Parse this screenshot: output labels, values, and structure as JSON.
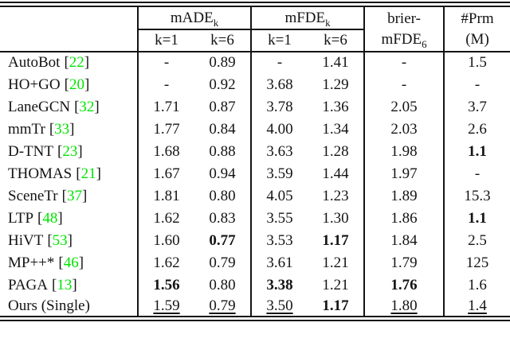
{
  "colors": {
    "citation_green": "#00e500",
    "text_black": "#141414"
  },
  "table": {
    "cite_open": "[",
    "cite_close": "]",
    "header": {
      "made": {
        "base": "mADE",
        "sub": "k"
      },
      "mfde": {
        "base": "mFDE",
        "sub": "k"
      },
      "k1": "k=1",
      "k6": "k=6",
      "brier_top": "brier-",
      "brier_bot": {
        "base": "mFDE",
        "sub": "6"
      },
      "prm_top": "#Prm",
      "prm_bot": "(M)"
    },
    "rows": [
      {
        "method": "AutoBot",
        "cite": "22",
        "cells": [
          {
            "v": "-"
          },
          {
            "v": "0.89"
          },
          {
            "v": "-"
          },
          {
            "v": "1.41"
          },
          {
            "v": "-"
          },
          {
            "v": "1.5"
          }
        ]
      },
      {
        "method": "HO+GO",
        "cite": "20",
        "cells": [
          {
            "v": "-"
          },
          {
            "v": "0.92"
          },
          {
            "v": "3.68"
          },
          {
            "v": "1.29"
          },
          {
            "v": "-"
          },
          {
            "v": "-"
          }
        ]
      },
      {
        "method": "LaneGCN",
        "cite": "32",
        "cells": [
          {
            "v": "1.71"
          },
          {
            "v": "0.87"
          },
          {
            "v": "3.78"
          },
          {
            "v": "1.36"
          },
          {
            "v": "2.05"
          },
          {
            "v": "3.7"
          }
        ]
      },
      {
        "method": "mmTr",
        "cite": "33",
        "cells": [
          {
            "v": "1.77"
          },
          {
            "v": "0.84"
          },
          {
            "v": "4.00"
          },
          {
            "v": "1.34"
          },
          {
            "v": "2.03"
          },
          {
            "v": "2.6"
          }
        ]
      },
      {
        "method": "D-TNT",
        "cite": "23",
        "cells": [
          {
            "v": "1.68"
          },
          {
            "v": "0.88"
          },
          {
            "v": "3.63"
          },
          {
            "v": "1.28"
          },
          {
            "v": "1.98"
          },
          {
            "v": "1.1",
            "bold": true
          }
        ]
      },
      {
        "method": "THOMAS",
        "cite": "21",
        "cells": [
          {
            "v": "1.67"
          },
          {
            "v": "0.94"
          },
          {
            "v": "3.59"
          },
          {
            "v": "1.44"
          },
          {
            "v": "1.97"
          },
          {
            "v": "-"
          }
        ]
      },
      {
        "method": "SceneTr",
        "cite": "37",
        "cells": [
          {
            "v": "1.81"
          },
          {
            "v": "0.80"
          },
          {
            "v": "4.05"
          },
          {
            "v": "1.23"
          },
          {
            "v": "1.89"
          },
          {
            "v": "15.3"
          }
        ]
      },
      {
        "method": "LTP",
        "cite": "48",
        "cells": [
          {
            "v": "1.62"
          },
          {
            "v": "0.83"
          },
          {
            "v": "3.55"
          },
          {
            "v": "1.30"
          },
          {
            "v": "1.86"
          },
          {
            "v": "1.1",
            "bold": true
          }
        ]
      },
      {
        "method": "HiVT",
        "cite": "53",
        "cells": [
          {
            "v": "1.60"
          },
          {
            "v": "0.77",
            "bold": true
          },
          {
            "v": "3.53"
          },
          {
            "v": "1.17",
            "bold": true
          },
          {
            "v": "1.84"
          },
          {
            "v": "2.5"
          }
        ]
      },
      {
        "method": "MP++*",
        "cite": "46",
        "cells": [
          {
            "v": "1.62"
          },
          {
            "v": "0.79"
          },
          {
            "v": "3.61"
          },
          {
            "v": "1.21"
          },
          {
            "v": "1.79"
          },
          {
            "v": "125"
          }
        ]
      },
      {
        "method": "PAGA",
        "cite": "13",
        "cells": [
          {
            "v": "1.56",
            "bold": true
          },
          {
            "v": "0.80"
          },
          {
            "v": "3.38",
            "bold": true
          },
          {
            "v": "1.21"
          },
          {
            "v": "1.76",
            "bold": true
          },
          {
            "v": "1.6"
          }
        ]
      },
      {
        "method": "Ours (Single)",
        "cite": null,
        "cells": [
          {
            "v": "1.59",
            "underline": true
          },
          {
            "v": "0.79",
            "underline": true
          },
          {
            "v": "3.50",
            "underline": true
          },
          {
            "v": "1.17",
            "bold": true
          },
          {
            "v": "1.80",
            "underline": true
          },
          {
            "v": "1.4",
            "underline": true
          }
        ]
      }
    ]
  }
}
